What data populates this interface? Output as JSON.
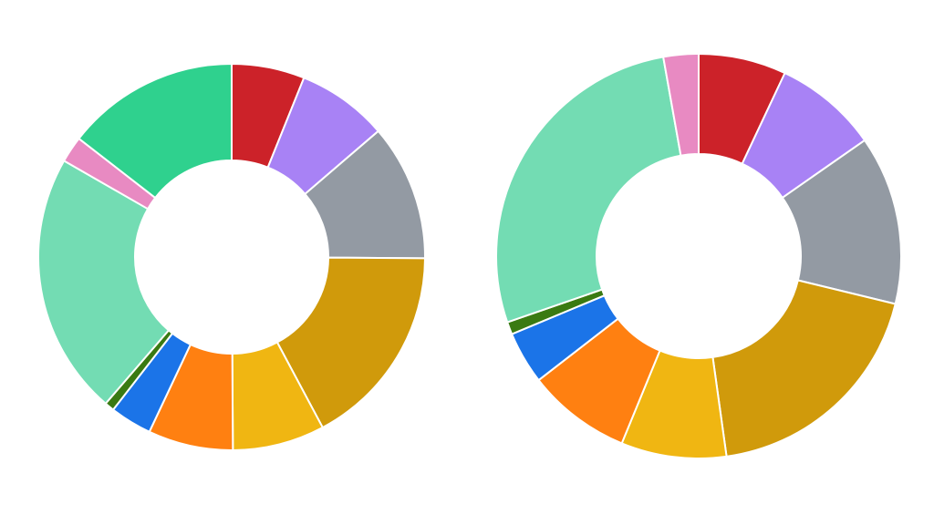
{
  "chart_data": [
    {
      "type": "pie",
      "donut": true,
      "title": "",
      "slices": [
        {
          "value": 6.1,
          "color": "#CC2229"
        },
        {
          "value": 7.6,
          "color": "#A882F5"
        },
        {
          "value": 11.4,
          "color": "#939AA3"
        },
        {
          "value": 17.1,
          "color": "#D09A0B"
        },
        {
          "value": 7.7,
          "color": "#F0B612"
        },
        {
          "value": 7.1,
          "color": "#FF8011"
        },
        {
          "value": 3.5,
          "color": "#1B74E8"
        },
        {
          "value": 0.8,
          "color": "#3A7A12"
        },
        {
          "value": 22.0,
          "color": "#73DCB3"
        },
        {
          "value": 2.2,
          "color": "#E88AC2"
        },
        {
          "value": 14.5,
          "color": "#2FD18E"
        }
      ]
    },
    {
      "type": "pie",
      "donut": true,
      "title": "",
      "slices": [
        {
          "value": 7.0,
          "color": "#CC2229"
        },
        {
          "value": 8.3,
          "color": "#A882F5"
        },
        {
          "value": 13.5,
          "color": "#939AA3"
        },
        {
          "value": 19.0,
          "color": "#D09A0B"
        },
        {
          "value": 8.4,
          "color": "#F0B612"
        },
        {
          "value": 8.3,
          "color": "#FF8011"
        },
        {
          "value": 4.2,
          "color": "#1B74E8"
        },
        {
          "value": 1.0,
          "color": "#3A7A12"
        },
        {
          "value": 27.5,
          "color": "#73DCB3"
        },
        {
          "value": 2.8,
          "color": "#E88AC2"
        }
      ]
    }
  ]
}
